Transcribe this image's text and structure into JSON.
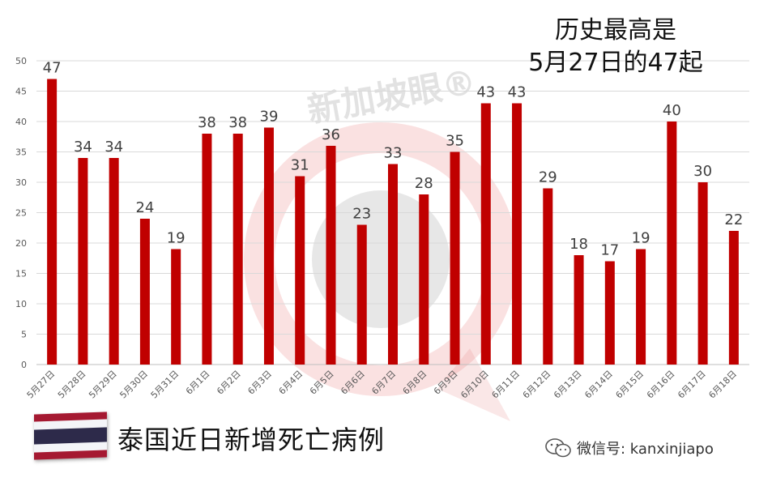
{
  "annotation": {
    "line1": "历史最高是",
    "line2": "5月27日的47起"
  },
  "caption": "泰国近日新增死亡病例",
  "wechat": {
    "label": "微信号: kanxinjiapo"
  },
  "watermark": {
    "text": "新加坡眼®"
  },
  "flag": {
    "stripes": [
      "#A51931",
      "#F4F5F8",
      "#2D2A4A",
      "#F4F5F8",
      "#A51931"
    ]
  },
  "chart_data": {
    "type": "bar",
    "categories": [
      "5月27日",
      "5月28日",
      "5月29日",
      "5月30日",
      "5月31日",
      "6月1日",
      "6月2日",
      "6月3日",
      "6月4日",
      "6月5日",
      "6月6日",
      "6月7日",
      "6月8日",
      "6月9日",
      "6月10日",
      "6月11日",
      "6月12日",
      "6月13日",
      "6月14日",
      "6月15日",
      "6月16日",
      "6月17日",
      "6月18日"
    ],
    "values": [
      47,
      34,
      34,
      24,
      19,
      38,
      38,
      39,
      31,
      36,
      23,
      33,
      28,
      35,
      43,
      43,
      29,
      18,
      17,
      19,
      40,
      30,
      22
    ],
    "ylim": [
      0,
      50
    ],
    "yticks": [
      0,
      5,
      10,
      15,
      20,
      25,
      30,
      35,
      40,
      45,
      50
    ],
    "grid": true,
    "bar_color": "#C00000",
    "title": "",
    "xlabel": "",
    "ylabel": ""
  }
}
